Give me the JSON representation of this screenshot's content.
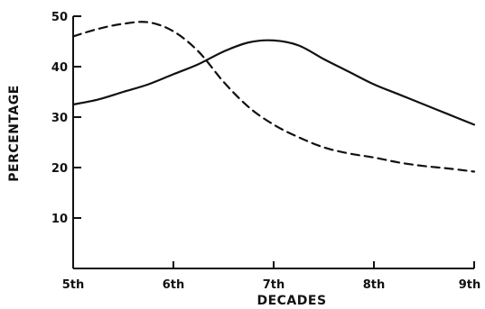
{
  "chart_data": {
    "type": "line",
    "title": "",
    "xlabel": "DECADES",
    "ylabel": "PERCENTAGE",
    "categories": [
      "5th",
      "6th",
      "7th",
      "8th",
      "9th"
    ],
    "xlim": [
      5,
      9
    ],
    "ylim": [
      0,
      50
    ],
    "yticks": [
      10,
      20,
      30,
      40,
      50
    ],
    "grid": false,
    "legend": "none",
    "series": [
      {
        "style": "solid",
        "x": [
          5,
          5.25,
          5.5,
          5.75,
          6,
          6.25,
          6.5,
          6.75,
          7,
          7.25,
          7.5,
          7.75,
          8,
          8.25,
          8.5,
          8.75,
          9
        ],
        "y": [
          32.5,
          33.5,
          35,
          36.5,
          38.5,
          40.5,
          43,
          44.8,
          45.2,
          44.2,
          41.5,
          39,
          36.5,
          34.5,
          32.5,
          30.5,
          28.5
        ]
      },
      {
        "style": "dashed",
        "x": [
          5,
          5.25,
          5.5,
          5.75,
          6,
          6.25,
          6.5,
          6.75,
          7,
          7.25,
          7.5,
          7.75,
          8,
          8.25,
          8.5,
          8.75,
          9
        ],
        "y": [
          46,
          47.5,
          48.5,
          48.8,
          47,
          43,
          37,
          32,
          28.5,
          26,
          24,
          22.8,
          22,
          21,
          20.3,
          19.8,
          19.2
        ]
      }
    ]
  }
}
